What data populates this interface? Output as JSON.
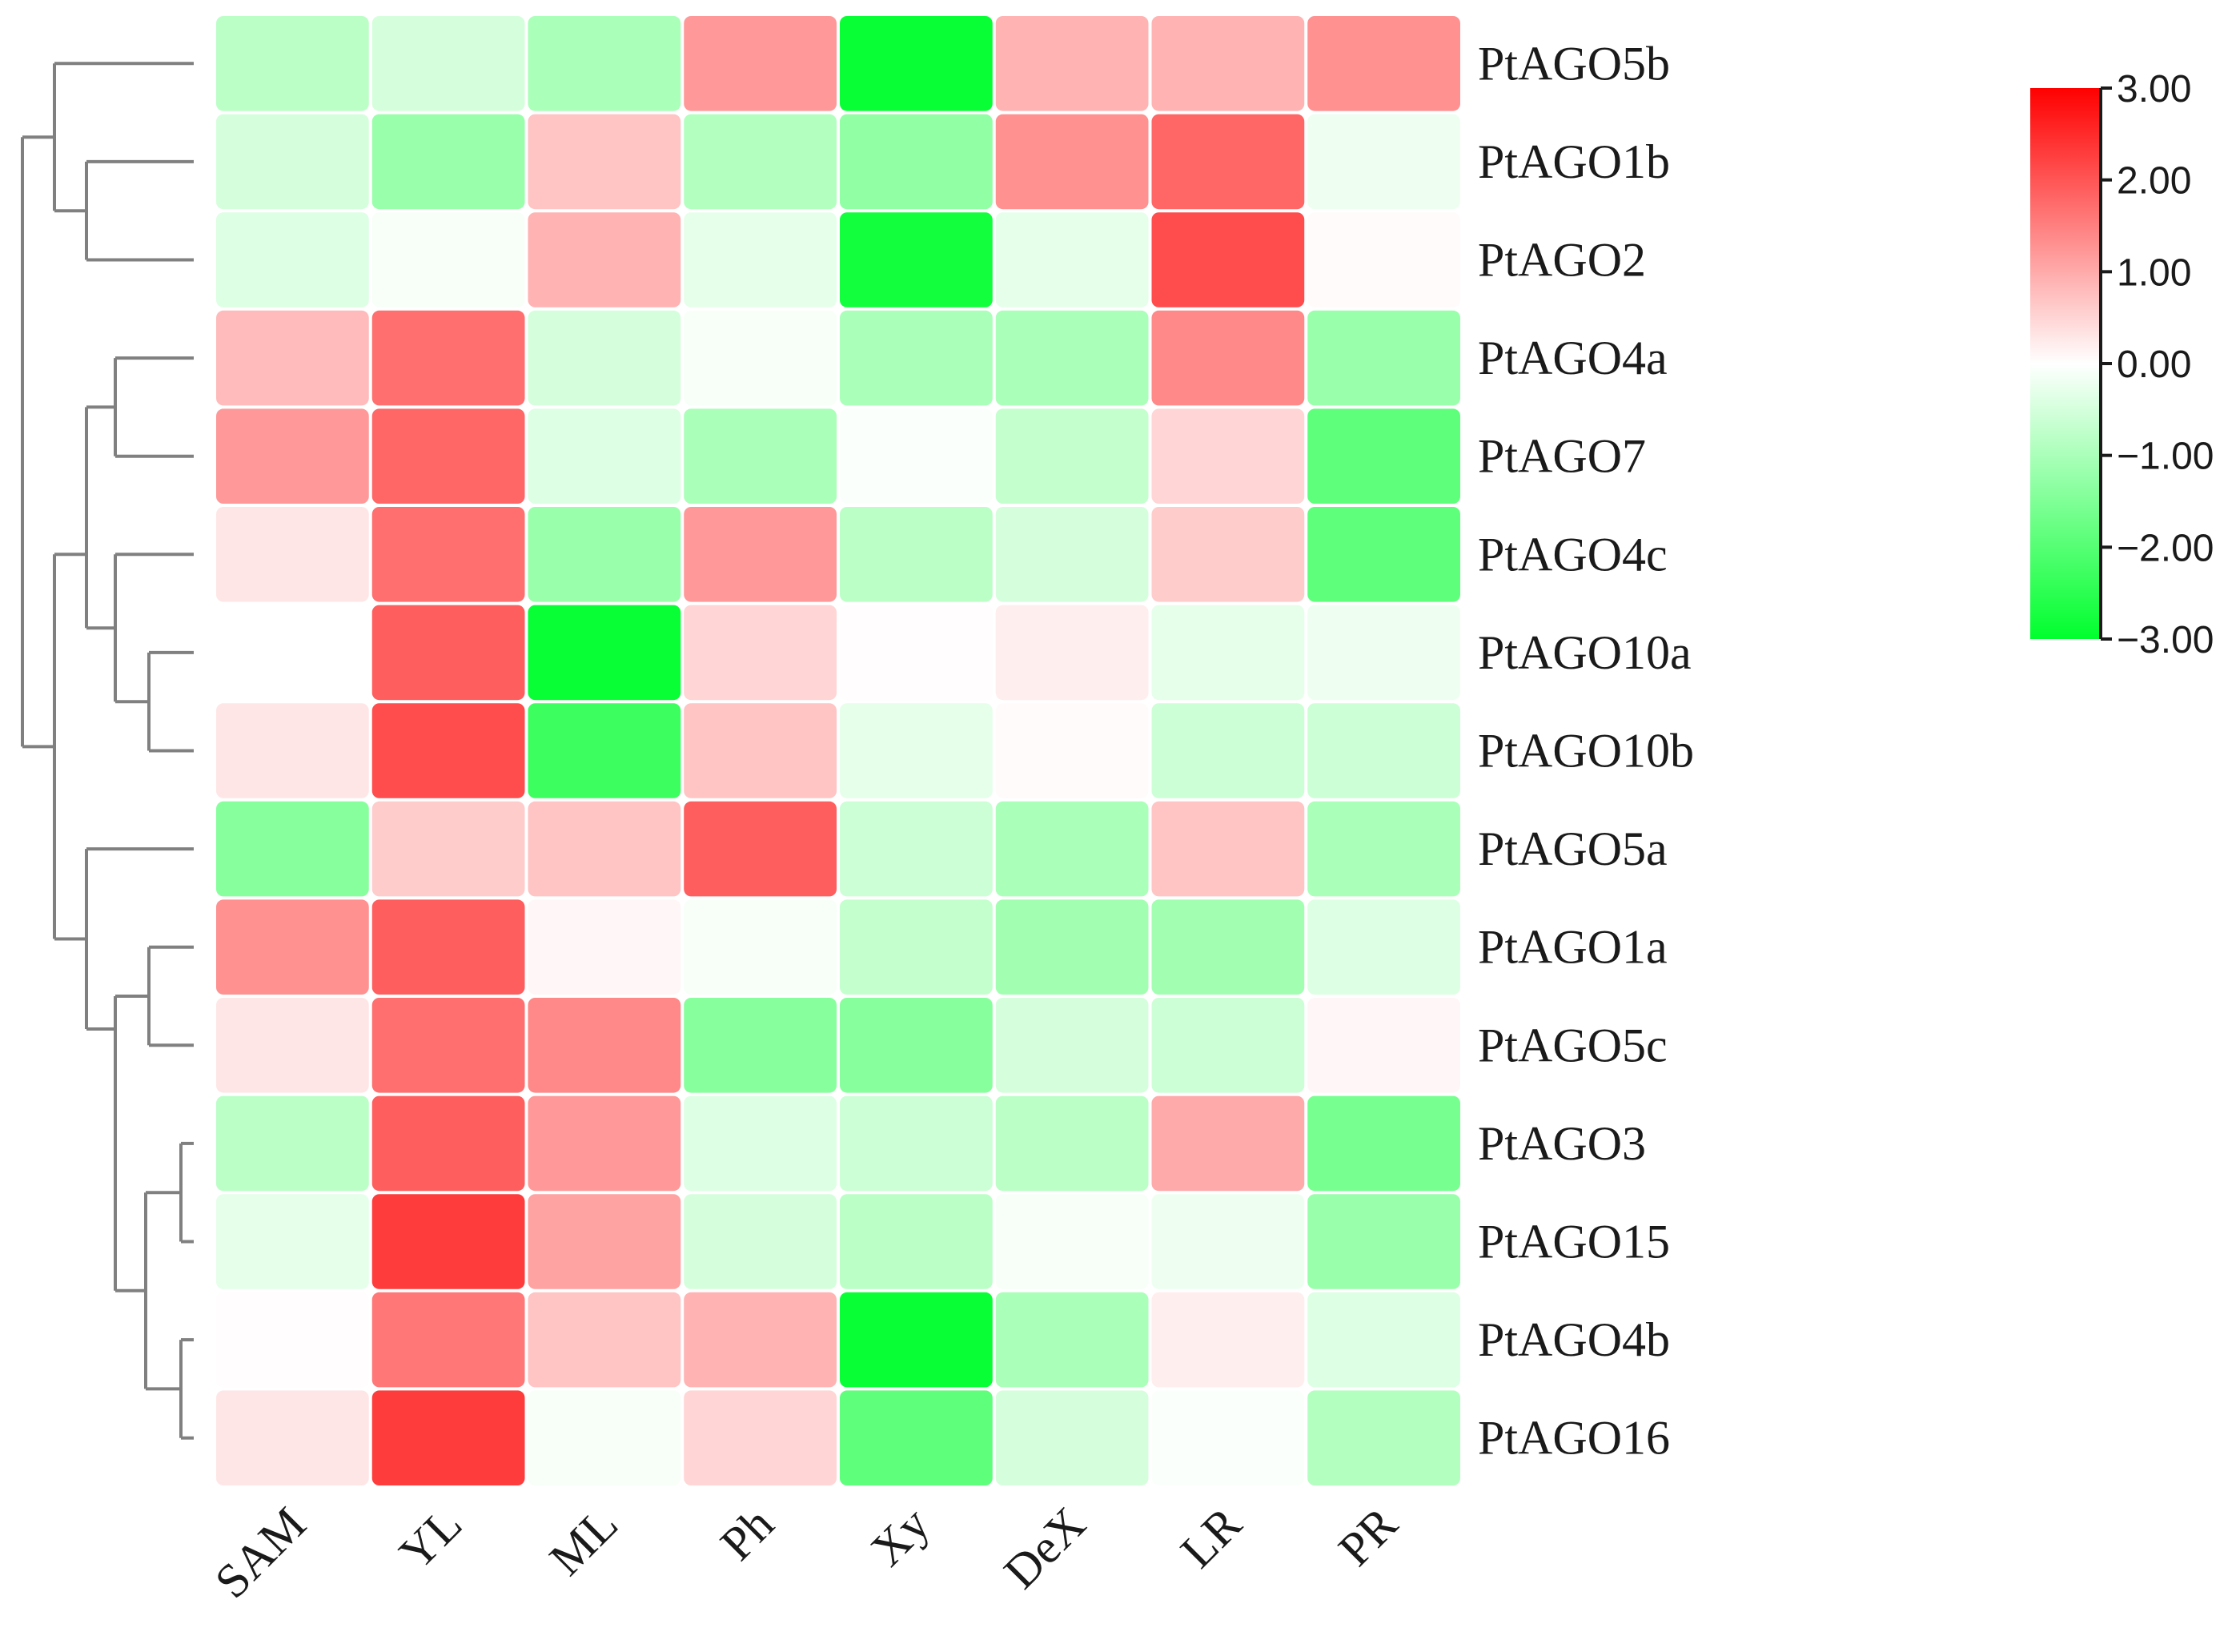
{
  "chart_data": {
    "type": "heatmap",
    "title": "",
    "rows": [
      "PtAGO5b",
      "PtAGO1b",
      "PtAGO2",
      "PtAGO4a",
      "PtAGO7",
      "PtAGO4c",
      "PtAGO10a",
      "PtAGO10b",
      "PtAGO5a",
      "PtAGO1a",
      "PtAGO5c",
      "PtAGO3",
      "PtAGO15",
      "PtAGO4b",
      "PtAGO16"
    ],
    "columns": [
      "SAM",
      "YL",
      "ML",
      "Ph",
      "Xy",
      "DeX",
      "LR",
      "PR"
    ],
    "values": [
      [
        -0.8,
        -0.5,
        -1.0,
        1.2,
        -2.9,
        0.9,
        0.9,
        1.3
      ],
      [
        -0.5,
        -1.2,
        0.7,
        -0.9,
        -1.3,
        1.3,
        1.8,
        -0.2
      ],
      [
        -0.4,
        -0.1,
        0.9,
        -0.3,
        -2.8,
        -0.3,
        2.1,
        0.05
      ],
      [
        0.8,
        1.7,
        -0.5,
        -0.1,
        -1.0,
        -1.0,
        1.4,
        -1.2
      ],
      [
        1.2,
        1.8,
        -0.4,
        -1.0,
        -0.05,
        -0.7,
        0.5,
        -1.9
      ],
      [
        0.3,
        1.7,
        -1.2,
        1.2,
        -0.8,
        -0.5,
        0.6,
        -1.9
      ],
      [
        0.0,
        1.9,
        -2.9,
        0.5,
        0.02,
        0.2,
        -0.3,
        -0.2
      ],
      [
        0.3,
        2.1,
        -2.3,
        0.7,
        -0.3,
        0.05,
        -0.6,
        -0.6
      ],
      [
        -1.4,
        0.6,
        0.7,
        1.9,
        -0.6,
        -1.0,
        0.7,
        -1.0
      ],
      [
        1.3,
        1.9,
        0.1,
        -0.1,
        -0.7,
        -1.1,
        -1.1,
        -0.4
      ],
      [
        0.3,
        1.7,
        1.4,
        -1.4,
        -1.4,
        -0.5,
        -0.6,
        0.1
      ],
      [
        -0.8,
        1.9,
        1.2,
        -0.4,
        -0.6,
        -0.8,
        1.0,
        -1.6
      ],
      [
        -0.3,
        2.3,
        1.1,
        -0.5,
        -0.8,
        -0.1,
        -0.2,
        -1.2
      ],
      [
        0.02,
        1.6,
        0.7,
        0.9,
        -2.9,
        -1.0,
        0.2,
        -0.4
      ],
      [
        0.3,
        2.3,
        -0.1,
        0.5,
        -1.9,
        -0.5,
        -0.05,
        -0.9
      ]
    ],
    "color_scale": {
      "min": -3.0,
      "mid": 0.0,
      "max": 3.0,
      "low_color": "#00ff2e",
      "mid_color": "#ffffff",
      "high_color": "#ff0000",
      "ticks": [
        "3.00",
        "2.00",
        "1.00",
        "0.00",
        "−1.00",
        "−2.00",
        "−3.00"
      ]
    },
    "dendrogram": "rows",
    "legend": "top-right"
  }
}
